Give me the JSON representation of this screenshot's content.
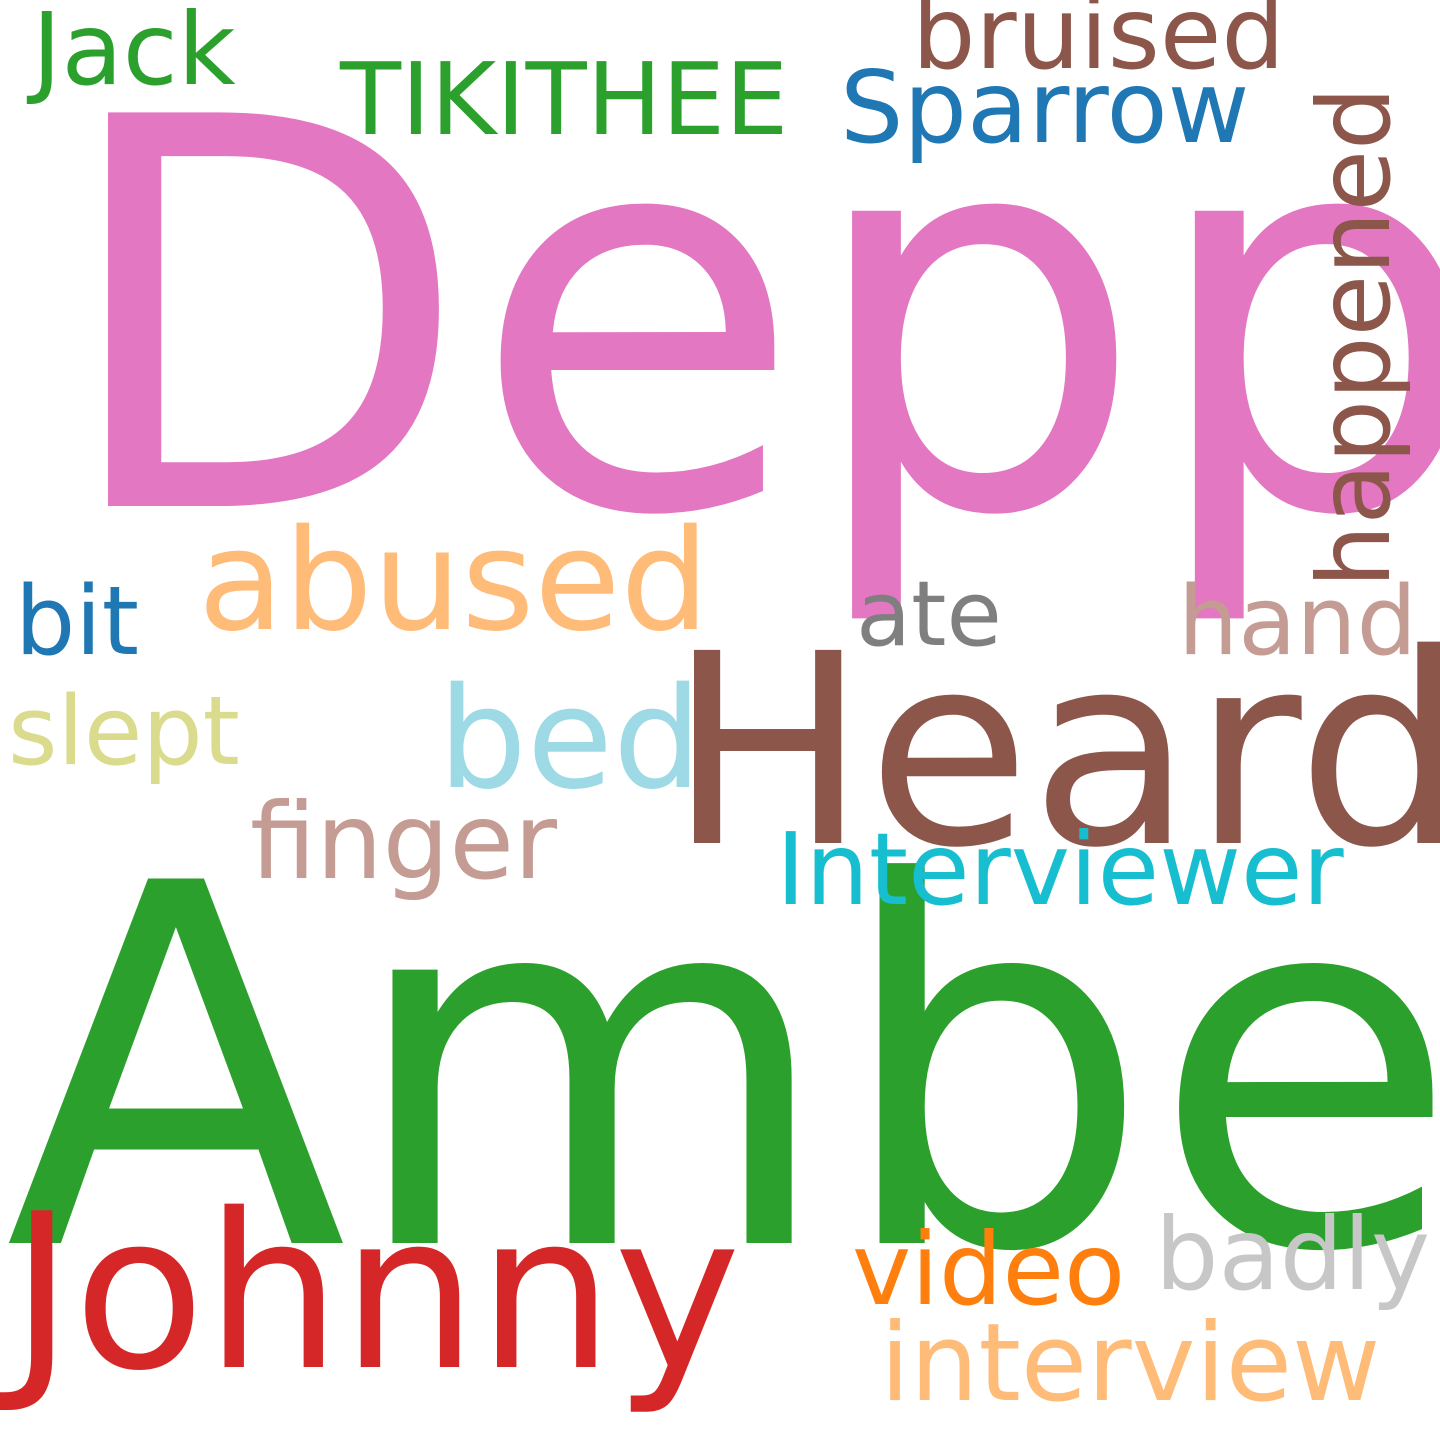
{
  "cloud": {
    "words": {
      "depp": {
        "text": "Depp",
        "color": "#e377c2"
      },
      "amber": {
        "text": "Amber",
        "color": "#2ca02c"
      },
      "heard": {
        "text": "Heard",
        "color": "#8c564b"
      },
      "johnny": {
        "text": "Johnny",
        "color": "#d62728"
      },
      "abused": {
        "text": "abused",
        "color": "#ffbb78"
      },
      "bed": {
        "text": "bed",
        "color": "#9edae5"
      },
      "interviewer": {
        "text": "Interviewer",
        "color": "#17becf"
      },
      "finger": {
        "text": "finger",
        "color": "#c49c94"
      },
      "interview": {
        "text": "interview",
        "color": "#ffbb78"
      },
      "video": {
        "text": "video",
        "color": "#ff7f0e"
      },
      "badly": {
        "text": "badly",
        "color": "#c7c7c7"
      },
      "sparrow": {
        "text": "Sparrow",
        "color": "#1f77b4"
      },
      "tikithee": {
        "text": "TIKITHEE",
        "color": "#2ca02c"
      },
      "jack": {
        "text": "Jack",
        "color": "#2ca02c"
      },
      "bruised": {
        "text": "bruised",
        "color": "#8c564b"
      },
      "happened": {
        "text": "happened",
        "color": "#8c564b"
      },
      "hand": {
        "text": "hand",
        "color": "#c49c94"
      },
      "ate": {
        "text": "ate",
        "color": "#7f7f7f"
      },
      "bit": {
        "text": "bit",
        "color": "#1f77b4"
      },
      "slept": {
        "text": "slept",
        "color": "#dbdb8d"
      }
    }
  }
}
